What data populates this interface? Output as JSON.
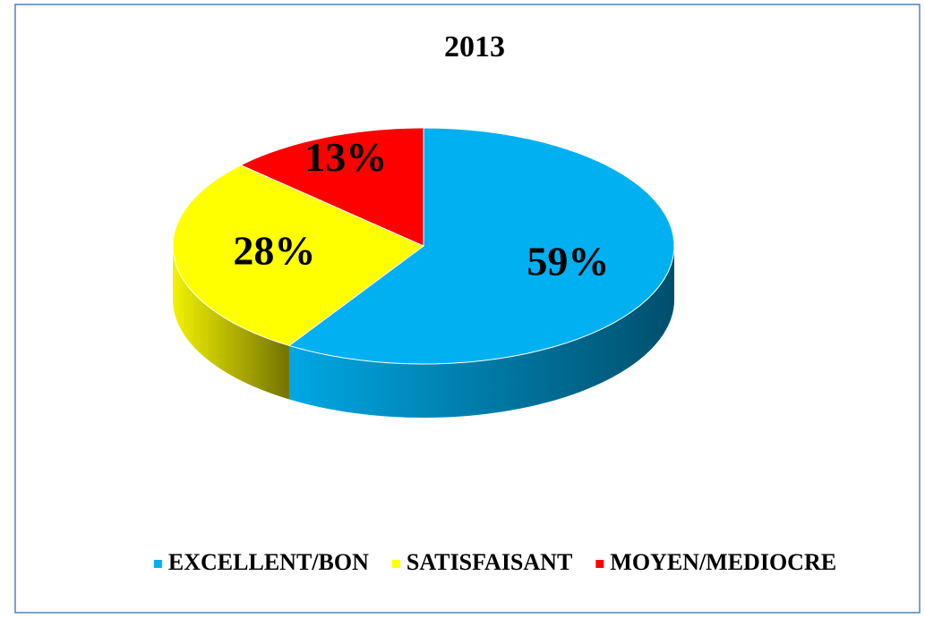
{
  "chart_data": {
    "type": "pie",
    "title": "2013",
    "categories": [
      "EXCELLENT/BON",
      "SATISFAISANT",
      "MOYEN/MEDIOCRE"
    ],
    "values": [
      59,
      28,
      13
    ],
    "value_labels": [
      "59%",
      "28%",
      "13%"
    ],
    "colors": [
      "#00b0f0",
      "#ffff00",
      "#ff0000"
    ],
    "legend": "bottom"
  }
}
